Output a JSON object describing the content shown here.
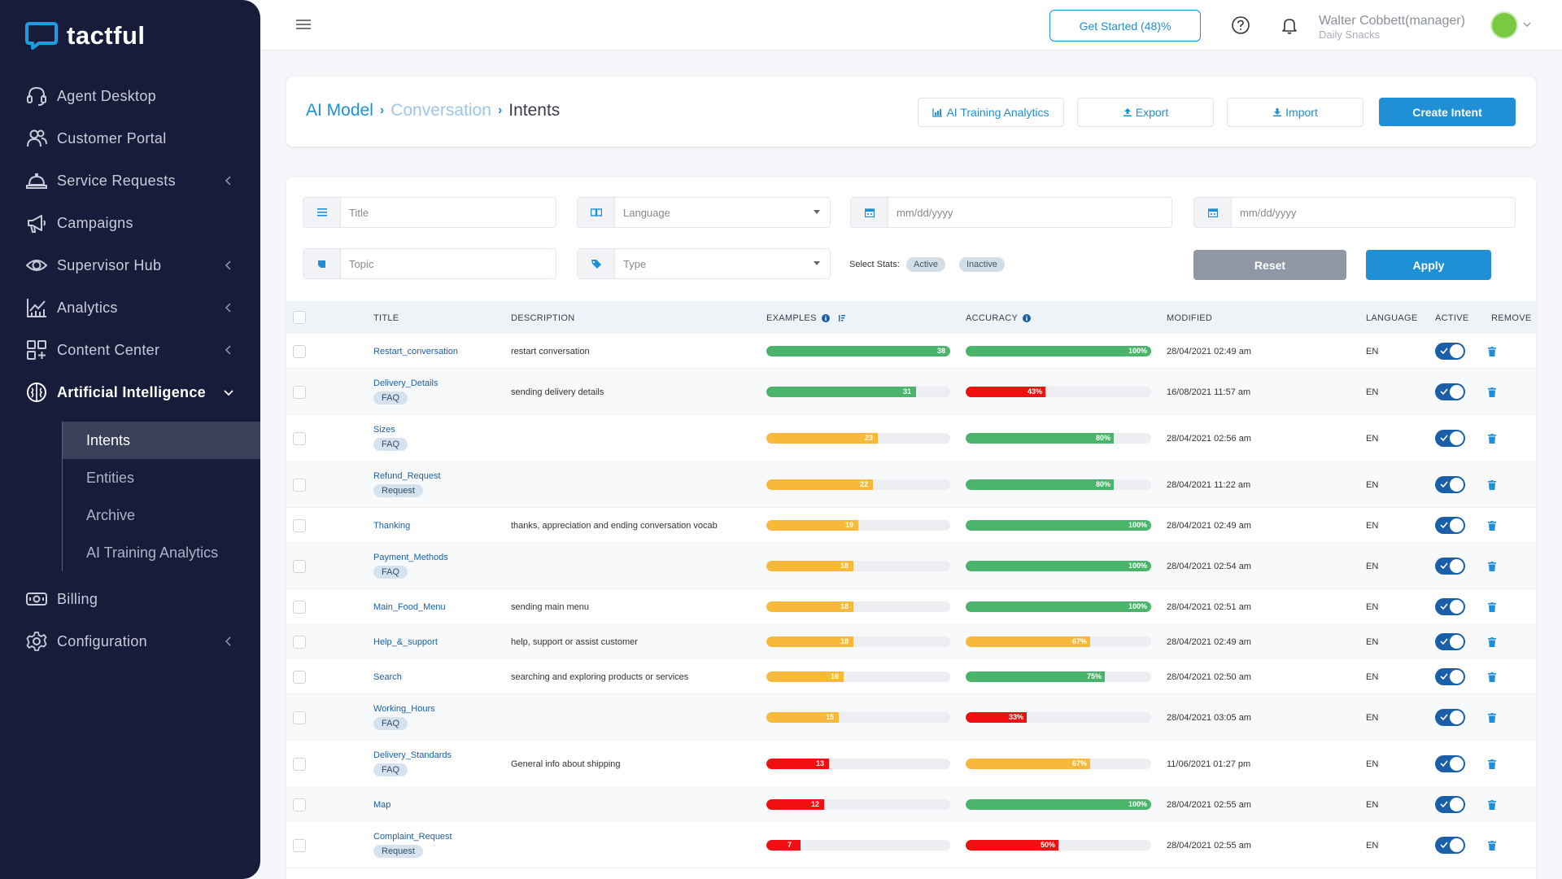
{
  "app": {
    "name": "tactful"
  },
  "sidebar": {
    "items": [
      {
        "label": "Agent Desktop",
        "icon": "headset-icon",
        "chevron": false
      },
      {
        "label": "Customer Portal",
        "icon": "users-icon",
        "chevron": false
      },
      {
        "label": "Service Requests",
        "icon": "bell-service-icon",
        "chevron": true
      },
      {
        "label": "Campaigns",
        "icon": "megaphone-icon",
        "chevron": false
      },
      {
        "label": "Supervisor Hub",
        "icon": "eye-icon",
        "chevron": true
      },
      {
        "label": "Analytics",
        "icon": "chart-icon",
        "chevron": true
      },
      {
        "label": "Content Center",
        "icon": "grid-icon",
        "chevron": true
      },
      {
        "label": "Artificial Intelligence",
        "icon": "brain-icon",
        "chevron": true
      }
    ],
    "ai_subitems": [
      {
        "label": "Intents"
      },
      {
        "label": "Entities"
      },
      {
        "label": "Archive"
      },
      {
        "label": "AI Training Analytics"
      }
    ],
    "bottom_items": [
      {
        "label": "Billing",
        "icon": "billing-icon"
      },
      {
        "label": "Configuration",
        "icon": "gear-icon"
      }
    ]
  },
  "topbar": {
    "get_started": "Get Started (48)%",
    "user_name": "Walter Cobbett(manager)",
    "user_company": "Daily Snacks"
  },
  "header": {
    "breadcrumb": [
      "AI Model",
      "Conversation",
      "Intents"
    ],
    "buttons": {
      "training": "AI Training Analytics",
      "export": "Export",
      "import": "Import",
      "create": "Create Intent"
    }
  },
  "filters": {
    "title_placeholder": "Title",
    "language_placeholder": "Language",
    "date_from_placeholder": "mm/dd/yyyy",
    "date_to_placeholder": "mm/dd/yyyy",
    "topic_placeholder": "Topic",
    "type_placeholder": "Type",
    "select_stats_label": "Select Stats:",
    "stat_active": "Active",
    "stat_inactive": "Inactive",
    "reset": "Reset",
    "apply": "Apply"
  },
  "table": {
    "columns": {
      "title": "TITLE",
      "description": "DESCRIPTION",
      "examples": "EXAMPLES",
      "accuracy": "ACCURACY",
      "modified": "MODIFIED",
      "language": "LANGUAGE",
      "active": "ACTIVE",
      "remove": "REMOVE"
    },
    "examples_max": 38,
    "colors": {
      "green": "#4ab56a",
      "yellow": "#f8b93a",
      "red": "#f10f12"
    },
    "rows": [
      {
        "title": "Restart_conversation",
        "tag": "",
        "description": "restart conversation",
        "examples": 38,
        "examples_color": "green",
        "accuracy": 100,
        "accuracy_label": "100%",
        "accuracy_color": "green",
        "modified": "28/04/2021 02:49 am",
        "language": "EN",
        "active": true
      },
      {
        "title": "Delivery_Details",
        "tag": "FAQ",
        "description": "sending delivery details",
        "examples": 31,
        "examples_color": "green",
        "accuracy": 43,
        "accuracy_label": "43%",
        "accuracy_color": "red",
        "modified": "16/08/2021 11:57 am",
        "language": "EN",
        "active": true
      },
      {
        "title": "Sizes",
        "tag": "FAQ",
        "description": "",
        "examples": 23,
        "examples_color": "yellow",
        "accuracy": 80,
        "accuracy_label": "80%",
        "accuracy_color": "green",
        "modified": "28/04/2021 02:56 am",
        "language": "EN",
        "active": true
      },
      {
        "title": "Refund_Request",
        "tag": "Request",
        "description": "",
        "examples": 22,
        "examples_color": "yellow",
        "accuracy": 80,
        "accuracy_label": "80%",
        "accuracy_color": "green",
        "modified": "28/04/2021 11:22 am",
        "language": "EN",
        "active": true
      },
      {
        "title": "Thanking",
        "tag": "",
        "description": "thanks, appreciation and ending conversation vocab",
        "examples": 19,
        "examples_color": "yellow",
        "accuracy": 100,
        "accuracy_label": "100%",
        "accuracy_color": "green",
        "modified": "28/04/2021 02:49 am",
        "language": "EN",
        "active": true
      },
      {
        "title": "Payment_Methods",
        "tag": "FAQ",
        "description": "",
        "examples": 18,
        "examples_color": "yellow",
        "accuracy": 100,
        "accuracy_label": "100%",
        "accuracy_color": "green",
        "modified": "28/04/2021 02:54 am",
        "language": "EN",
        "active": true
      },
      {
        "title": "Main_Food_Menu",
        "tag": "",
        "description": "sending main menu",
        "examples": 18,
        "examples_color": "yellow",
        "accuracy": 100,
        "accuracy_label": "100%",
        "accuracy_color": "green",
        "modified": "28/04/2021 02:51 am",
        "language": "EN",
        "active": true
      },
      {
        "title": "Help_&_support",
        "tag": "",
        "description": "help, support or assist customer",
        "examples": 18,
        "examples_color": "yellow",
        "accuracy": 67,
        "accuracy_label": "67%",
        "accuracy_color": "yellow",
        "modified": "28/04/2021 02:49 am",
        "language": "EN",
        "active": true
      },
      {
        "title": "Search",
        "tag": "",
        "description": "searching and exploring products or services",
        "examples": 16,
        "examples_color": "yellow",
        "accuracy": 75,
        "accuracy_label": "75%",
        "accuracy_color": "green",
        "modified": "28/04/2021 02:50 am",
        "language": "EN",
        "active": true
      },
      {
        "title": "Working_Hours",
        "tag": "FAQ",
        "description": "",
        "examples": 15,
        "examples_color": "yellow",
        "accuracy": 33,
        "accuracy_label": "33%",
        "accuracy_color": "red",
        "modified": "28/04/2021 03:05 am",
        "language": "EN",
        "active": true
      },
      {
        "title": "Delivery_Standards",
        "tag": "FAQ",
        "description": "General info about shipping",
        "examples": 13,
        "examples_color": "red",
        "accuracy": 67,
        "accuracy_label": "67%",
        "accuracy_color": "yellow",
        "modified": "11/06/2021 01:27 pm",
        "language": "EN",
        "active": true
      },
      {
        "title": "Map",
        "tag": "",
        "description": "",
        "examples": 12,
        "examples_color": "red",
        "accuracy": 100,
        "accuracy_label": "100%",
        "accuracy_color": "green",
        "modified": "28/04/2021 02:55 am",
        "language": "EN",
        "active": true
      },
      {
        "title": "Complaint_Request",
        "tag": "Request",
        "description": "",
        "examples": 7,
        "examples_color": "red",
        "accuracy": 50,
        "accuracy_label": "50%",
        "accuracy_color": "red",
        "modified": "28/04/2021 02:55 am",
        "language": "EN",
        "active": true
      }
    ]
  }
}
